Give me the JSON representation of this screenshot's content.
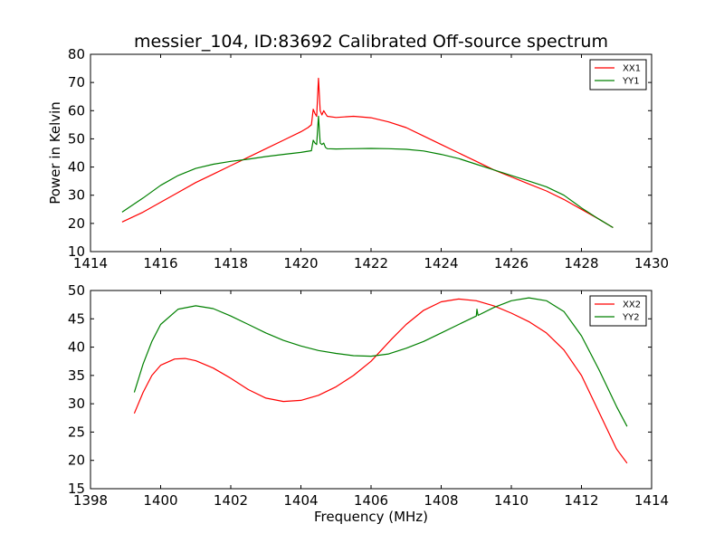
{
  "chart_data": [
    {
      "type": "line",
      "title": "messier_104, ID:83692 Calibrated Off-source spectrum",
      "xlabel": "",
      "ylabel": "Power in Kelvin",
      "xlim": [
        1414,
        1430
      ],
      "ylim": [
        10,
        80
      ],
      "xticks": [
        "1414",
        "1416",
        "1418",
        "1420",
        "1422",
        "1424",
        "1426",
        "1428",
        "1430"
      ],
      "yticks": [
        "10",
        "20",
        "30",
        "40",
        "50",
        "60",
        "70",
        "80"
      ],
      "legend_position": "top-right",
      "series": [
        {
          "name": "XX1",
          "color": "#ff0000",
          "points": [
            [
              1414.9,
              20.5
            ],
            [
              1415.5,
              24
            ],
            [
              1416,
              27.5
            ],
            [
              1416.5,
              31
            ],
            [
              1417,
              34.5
            ],
            [
              1417.5,
              37.5
            ],
            [
              1418,
              40.5
            ],
            [
              1418.5,
              43.5
            ],
            [
              1419,
              46.5
            ],
            [
              1419.5,
              49.5
            ],
            [
              1420,
              52.5
            ],
            [
              1420.2,
              54
            ],
            [
              1420.3,
              55
            ],
            [
              1420.35,
              60.5
            ],
            [
              1420.4,
              59
            ],
            [
              1420.45,
              58
            ],
            [
              1420.5,
              71.5
            ],
            [
              1420.55,
              60
            ],
            [
              1420.6,
              58.5
            ],
            [
              1420.65,
              60
            ],
            [
              1420.7,
              59
            ],
            [
              1420.75,
              58
            ],
            [
              1421,
              57.6
            ],
            [
              1421.5,
              58
            ],
            [
              1422,
              57.5
            ],
            [
              1422.5,
              56
            ],
            [
              1423,
              54
            ],
            [
              1423.5,
              51
            ],
            [
              1424,
              48
            ],
            [
              1424.5,
              45
            ],
            [
              1425,
              42
            ],
            [
              1425.5,
              39
            ],
            [
              1426,
              36.5
            ],
            [
              1426.5,
              34
            ],
            [
              1427,
              31.5
            ],
            [
              1427.5,
              28.5
            ],
            [
              1428,
              25
            ],
            [
              1428.5,
              21.5
            ],
            [
              1428.9,
              18.5
            ]
          ]
        },
        {
          "name": "YY1",
          "color": "#008000",
          "points": [
            [
              1414.9,
              24
            ],
            [
              1415.5,
              29
            ],
            [
              1416,
              33.5
            ],
            [
              1416.5,
              37
            ],
            [
              1417,
              39.5
            ],
            [
              1417.5,
              41
            ],
            [
              1418,
              42
            ],
            [
              1418.5,
              42.8
            ],
            [
              1419,
              43.7
            ],
            [
              1419.5,
              44.5
            ],
            [
              1420,
              45.2
            ],
            [
              1420.3,
              45.8
            ],
            [
              1420.35,
              49.5
            ],
            [
              1420.4,
              48.5
            ],
            [
              1420.45,
              48
            ],
            [
              1420.5,
              58
            ],
            [
              1420.55,
              48.5
            ],
            [
              1420.6,
              48
            ],
            [
              1420.65,
              48.5
            ],
            [
              1420.7,
              47
            ],
            [
              1420.75,
              46.5
            ],
            [
              1421,
              46.4
            ],
            [
              1421.5,
              46.5
            ],
            [
              1422,
              46.6
            ],
            [
              1422.5,
              46.5
            ],
            [
              1423,
              46.3
            ],
            [
              1423.5,
              45.7
            ],
            [
              1424,
              44.5
            ],
            [
              1424.5,
              43
            ],
            [
              1425,
              41
            ],
            [
              1425.5,
              39
            ],
            [
              1426,
              37
            ],
            [
              1426.5,
              35
            ],
            [
              1427,
              33
            ],
            [
              1427.5,
              30
            ],
            [
              1428,
              25.5
            ],
            [
              1428.5,
              21.5
            ],
            [
              1428.9,
              18.5
            ]
          ]
        }
      ]
    },
    {
      "type": "line",
      "title": "",
      "xlabel": "Frequency (MHz)",
      "ylabel": "",
      "xlim": [
        1398,
        1414
      ],
      "ylim": [
        15,
        50
      ],
      "xticks": [
        "1398",
        "1400",
        "1402",
        "1404",
        "1406",
        "1408",
        "1410",
        "1412",
        "1414"
      ],
      "yticks": [
        "15",
        "20",
        "25",
        "30",
        "35",
        "40",
        "45",
        "50"
      ],
      "legend_position": "top-right",
      "series": [
        {
          "name": "XX2",
          "color": "#ff0000",
          "points": [
            [
              1399.25,
              28.3
            ],
            [
              1399.5,
              32
            ],
            [
              1399.75,
              35
            ],
            [
              1400,
              36.8
            ],
            [
              1400.4,
              37.9
            ],
            [
              1400.7,
              38
            ],
            [
              1401,
              37.6
            ],
            [
              1401.5,
              36.3
            ],
            [
              1402,
              34.5
            ],
            [
              1402.5,
              32.5
            ],
            [
              1403,
              31
            ],
            [
              1403.5,
              30.4
            ],
            [
              1404,
              30.6
            ],
            [
              1404.5,
              31.5
            ],
            [
              1405,
              33
            ],
            [
              1405.5,
              35
            ],
            [
              1406,
              37.5
            ],
            [
              1406.3,
              39.5
            ],
            [
              1406.6,
              41.5
            ],
            [
              1407,
              44
            ],
            [
              1407.5,
              46.5
            ],
            [
              1408,
              48
            ],
            [
              1408.5,
              48.5
            ],
            [
              1409,
              48.2
            ],
            [
              1409.5,
              47.3
            ],
            [
              1410,
              46
            ],
            [
              1410.5,
              44.5
            ],
            [
              1411,
              42.5
            ],
            [
              1411.5,
              39.5
            ],
            [
              1412,
              35
            ],
            [
              1412.5,
              28.5
            ],
            [
              1413,
              22
            ],
            [
              1413.3,
              19.5
            ]
          ]
        },
        {
          "name": "YY2",
          "color": "#008000",
          "points": [
            [
              1399.25,
              32
            ],
            [
              1399.5,
              37
            ],
            [
              1399.75,
              41
            ],
            [
              1400,
              44
            ],
            [
              1400.5,
              46.7
            ],
            [
              1401,
              47.3
            ],
            [
              1401.5,
              46.8
            ],
            [
              1402,
              45.5
            ],
            [
              1402.5,
              44
            ],
            [
              1403,
              42.5
            ],
            [
              1403.5,
              41.2
            ],
            [
              1404,
              40.2
            ],
            [
              1404.5,
              39.4
            ],
            [
              1405,
              38.9
            ],
            [
              1405.5,
              38.5
            ],
            [
              1406,
              38.4
            ],
            [
              1406.5,
              38.8
            ],
            [
              1407,
              39.8
            ],
            [
              1407.5,
              41
            ],
            [
              1408,
              42.5
            ],
            [
              1408.5,
              44
            ],
            [
              1409,
              45.5
            ],
            [
              1409.02,
              46.7
            ],
            [
              1409.05,
              45.6
            ],
            [
              1409.5,
              47
            ],
            [
              1410,
              48.2
            ],
            [
              1410.5,
              48.7
            ],
            [
              1411,
              48.2
            ],
            [
              1411.5,
              46.3
            ],
            [
              1412,
              42
            ],
            [
              1412.5,
              36
            ],
            [
              1413,
              29.5
            ],
            [
              1413.3,
              26
            ]
          ]
        }
      ]
    }
  ]
}
